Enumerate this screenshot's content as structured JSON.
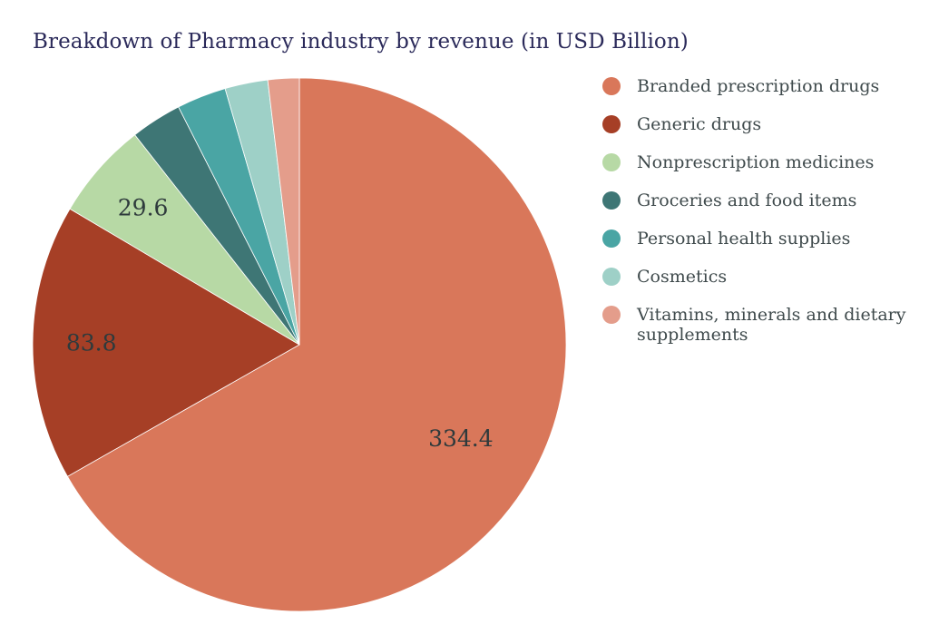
{
  "chart_data": {
    "type": "pie",
    "title": "Breakdown of Pharmacy industry by revenue (in USD Billion)",
    "slices": [
      {
        "name": "Branded prescription drugs",
        "value": 334.4,
        "label": "334.4",
        "color": "#d9775a"
      },
      {
        "name": "Generic drugs",
        "value": 83.8,
        "label": "83.8",
        "color": "#a63f26"
      },
      {
        "name": "Nonprescription medicines",
        "value": 29.6,
        "label": "29.6",
        "color": "#b7d9a5"
      },
      {
        "name": "Groceries and food items",
        "value": 15.5,
        "label": "",
        "color": "#3e7675"
      },
      {
        "name": "Personal health supplies",
        "value": 15.0,
        "label": "",
        "color": "#4aa5a4"
      },
      {
        "name": "Cosmetics",
        "value": 13.0,
        "label": "",
        "color": "#9ed0c7"
      },
      {
        "name": "Vitamins, minerals and dietary supplements",
        "value": 9.5,
        "label": "",
        "color": "#e49d8b"
      }
    ],
    "legend_position": "right",
    "start_angle": "top",
    "direction": "clockwise"
  }
}
